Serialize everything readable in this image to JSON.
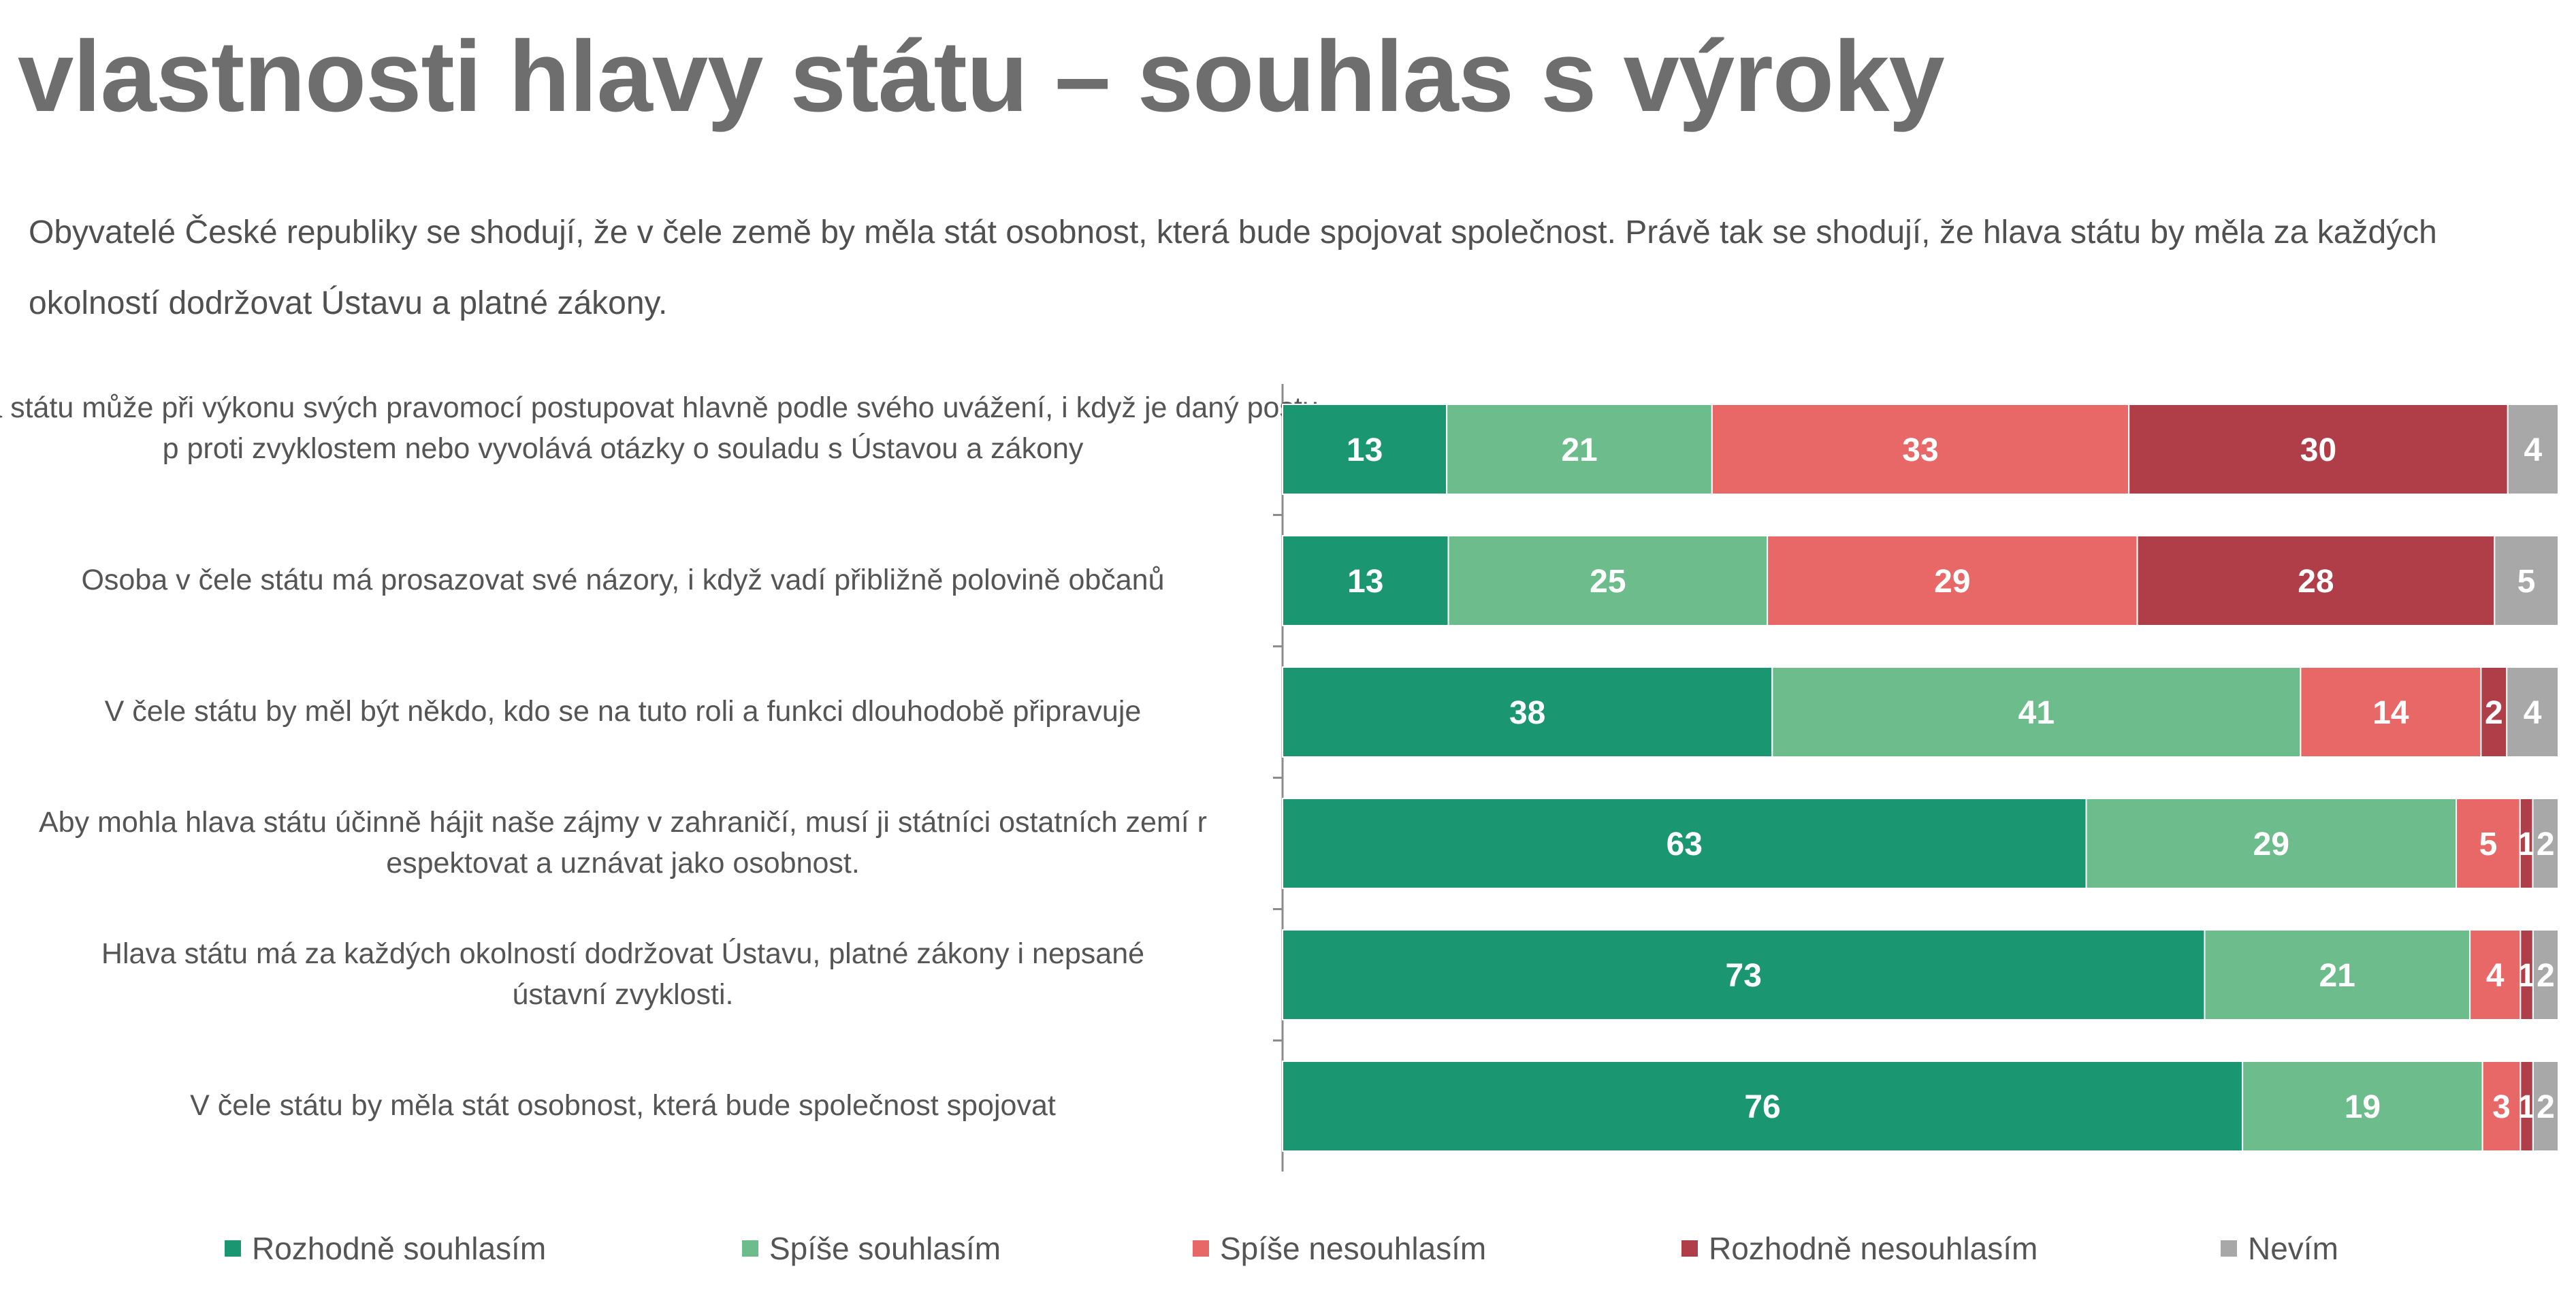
{
  "title": "vlastnosti hlavy státu – souhlas s výroky",
  "subtitle": "Obyvatelé České republiky se shodují, že v čele země by měla stát osobnost, která bude spojovat společnost. Právě tak se shodují, že hlava státu by měla za každých okolností dodržovat Ústavu a platné zákony.",
  "chart_data": {
    "type": "bar",
    "orientation": "horizontal",
    "stacked": true,
    "xlim": [
      0,
      100
    ],
    "grid": false,
    "legend_position": "bottom",
    "categories": [
      "Hlava státu může při výkonu svých pravomocí postupovat hlavně podle svého uvážení, i když je daný postup proti zvyklostem nebo vyvolává otázky o souladu s Ústavou a zákony",
      "Osoba v čele státu má prosazovat své názory, i když vadí přibližně polovině občanů",
      "V čele státu by měl být někdo, kdo se na tuto roli a funkci dlouhodobě připravuje",
      "Aby mohla hlava státu účinně hájit naše zájmy v zahraničí, musí ji státníci ostatních zemí respektovat a uznávat jako osobnost.",
      "Hlava státu má za každých okolností dodržovat Ústavu, platné zákony i nepsané ústavní zvyklosti.",
      "V čele státu by měla stát osobnost, která bude společnost spojovat"
    ],
    "series": [
      {
        "name": "Rozhodně souhlasím",
        "color": "#1a9670",
        "values": [
          13,
          13,
          38,
          63,
          73,
          76
        ]
      },
      {
        "name": "Spíše souhlasím",
        "color": "#6cbc8c",
        "values": [
          21,
          25,
          41,
          29,
          21,
          19
        ]
      },
      {
        "name": "Spíše nesouhlasím",
        "color": "#e86868",
        "values": [
          33,
          29,
          14,
          5,
          4,
          3
        ]
      },
      {
        "name": "Rozhodně nesouhlasím",
        "color": "#b03e48",
        "values": [
          30,
          28,
          2,
          1,
          1,
          1
        ]
      },
      {
        "name": "Nevím",
        "color": "#a8a8a8",
        "values": [
          4,
          5,
          4,
          2,
          2,
          2
        ]
      }
    ]
  }
}
